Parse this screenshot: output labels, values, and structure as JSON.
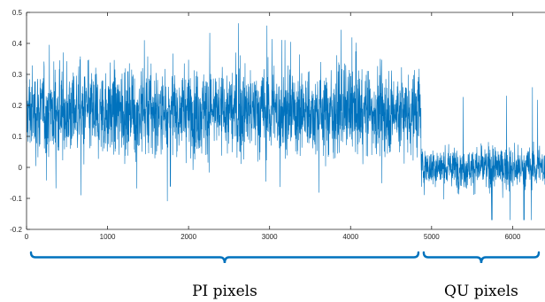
{
  "chart_data": {
    "type": "line",
    "title": "",
    "xlabel": "",
    "ylabel": "",
    "xlim": [
      0,
      6400
    ],
    "ylim": [
      -0.2,
      0.5
    ],
    "grid": false,
    "x_ticks": [
      0,
      1000,
      2000,
      3000,
      4000,
      5000,
      6000
    ],
    "x_tick_labels": [
      "0",
      "1000",
      "2000",
      "3000",
      "4000",
      "5000",
      "6000"
    ],
    "y_ticks": [
      -0.2,
      -0.1,
      0,
      0.1,
      0.2,
      0.3,
      0.4,
      0.5
    ],
    "y_tick_labels": [
      "-0.2",
      "-0.1",
      "0",
      "0.1",
      "0.2",
      "0.3",
      "0.4",
      "0.5"
    ],
    "series": [
      {
        "color": "#0072bd",
        "segments": [
          {
            "x_start": 0,
            "x_end": 4870,
            "mean": 0.18,
            "typical_min": 0.02,
            "typical_max": 0.36,
            "min": -0.16,
            "max": 0.47
          },
          {
            "x_start": 4870,
            "x_end": 6400,
            "mean": 0.0,
            "typical_min": -0.08,
            "typical_max": 0.08,
            "min": -0.17,
            "max": 0.27
          }
        ]
      }
    ],
    "annotations": [
      {
        "text": "PI pixels",
        "x_range": [
          0,
          4870
        ]
      },
      {
        "text": "QU pixels",
        "x_range": [
          4870,
          6400
        ]
      }
    ]
  }
}
